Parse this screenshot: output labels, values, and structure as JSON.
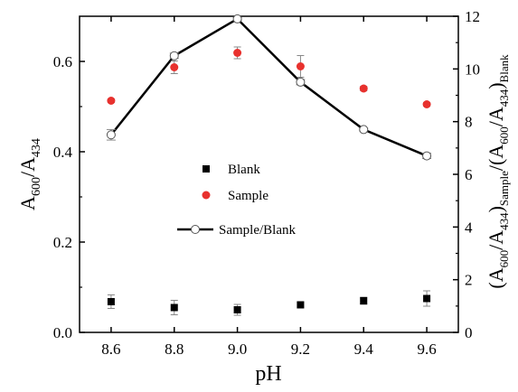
{
  "chart_data": {
    "type": "scatter",
    "x_axis": {
      "label": "pH",
      "range": [
        8.5,
        9.7
      ],
      "ticks": [
        8.6,
        8.8,
        9.0,
        9.2,
        9.4,
        9.6
      ],
      "tick_labels": [
        "8.6",
        "8.8",
        "9.0",
        "9.2",
        "9.4",
        "9.6"
      ]
    },
    "y_axis_left": {
      "label": {
        "main": "A",
        "sub1": "600",
        "mid": "/A",
        "sub2": "434"
      },
      "range": [
        0.0,
        0.7
      ],
      "ticks": [
        0.0,
        0.2,
        0.4,
        0.6
      ],
      "tick_labels": [
        "0.0",
        "0.2",
        "0.4",
        "0.6"
      ]
    },
    "y_axis_right": {
      "label": {
        "p1": "(A",
        "s1": "600",
        "p2": "/A",
        "s2": "434",
        "p3": ")",
        "s3": "Sample",
        "p4": "/(A",
        "s4": "600",
        "p5": "/A",
        "s5": "434",
        "p6": ")",
        "s6": "Blank"
      },
      "range": [
        0,
        12
      ],
      "ticks": [
        0,
        2,
        4,
        6,
        8,
        10,
        12
      ],
      "tick_labels": [
        "0",
        "2",
        "4",
        "6",
        "8",
        "10",
        "12"
      ]
    },
    "series": [
      {
        "name": "Blank",
        "axis": "left",
        "marker": "square",
        "color": "#000000",
        "x": [
          8.6,
          8.8,
          9.0,
          9.2,
          9.4,
          9.6
        ],
        "y": [
          0.068,
          0.055,
          0.05,
          0.061,
          0.07,
          0.075
        ],
        "error": [
          0.015,
          0.016,
          0.012,
          0.005,
          0.008,
          0.017
        ]
      },
      {
        "name": "Sample",
        "axis": "left",
        "marker": "circle",
        "color": "#e8312e",
        "x": [
          8.6,
          8.8,
          9.0,
          9.2,
          9.4,
          9.6
        ],
        "y": [
          0.513,
          0.587,
          0.619,
          0.589,
          0.54,
          0.505
        ],
        "error": [
          0.004,
          0.014,
          0.013,
          0.024,
          0.005,
          0.004
        ]
      },
      {
        "name": "Sample/Blank",
        "axis": "right",
        "marker": "open-circle-line",
        "color": "#000000",
        "x": [
          8.6,
          8.8,
          9.0,
          9.2,
          9.4,
          9.6
        ],
        "y": [
          7.5,
          10.5,
          11.9,
          9.5,
          7.7,
          6.7
        ],
        "error": [
          0.2,
          0.1,
          0.05,
          0.1,
          0.05,
          0.1
        ]
      }
    ],
    "legend": {
      "placement": "center",
      "entries": [
        "Blank",
        "Sample",
        "Sample/Blank"
      ]
    },
    "grid": false
  }
}
